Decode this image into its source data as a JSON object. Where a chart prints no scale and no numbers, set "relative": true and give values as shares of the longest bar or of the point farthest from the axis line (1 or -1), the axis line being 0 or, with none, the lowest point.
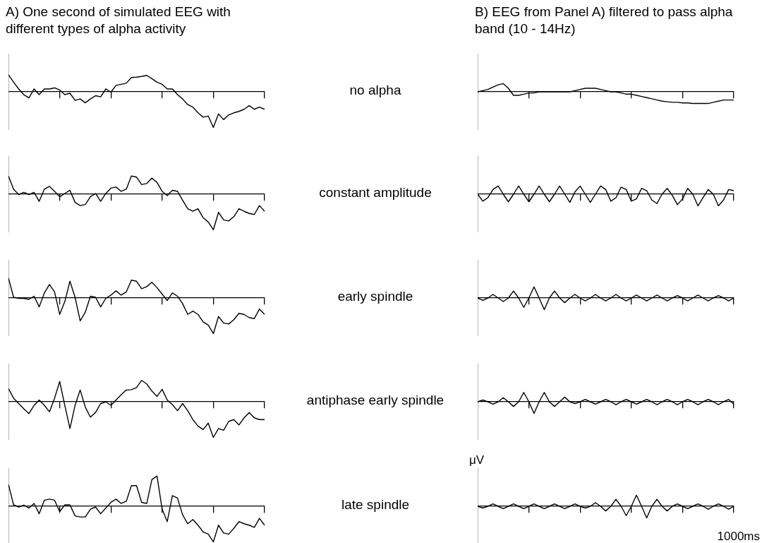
{
  "chart_data": [
    {
      "type": "line",
      "title": "A) One second of simulated EEG with different types of alpha activity",
      "annotations": [
        "no alpha"
      ],
      "relative": true,
      "tick_labels": false,
      "marker": "none",
      "color": "#000000",
      "categories": [
        null,
        null,
        null,
        null,
        null,
        null,
        null,
        null,
        null,
        null,
        null,
        null,
        null,
        null,
        null,
        null,
        null,
        null,
        null,
        null,
        null,
        null,
        null,
        null,
        null,
        null,
        null,
        null,
        null,
        null,
        null,
        null,
        null,
        null,
        null,
        null,
        null,
        null,
        null,
        null,
        null,
        null,
        null,
        null,
        null,
        null,
        null,
        null,
        null,
        null,
        null
      ],
      "values": [
        0.48,
        0.27,
        0.08,
        -0.08,
        -0.17,
        0.08,
        -0.08,
        0.08,
        0.08,
        0.11,
        0.05,
        -0.08,
        -0.04,
        -0.24,
        -0.2,
        -0.31,
        -0.2,
        -0.11,
        -0.14,
        0.08,
        -0.01,
        0.18,
        0.21,
        0.24,
        0.4,
        0.41,
        0.43,
        0.46,
        0.37,
        0.27,
        0.21,
        0.08,
        0.08,
        -0.08,
        -0.2,
        -0.36,
        -0.43,
        -0.59,
        -0.71,
        -0.68,
        -1,
        -0.62,
        -0.78,
        -0.65,
        -0.59,
        -0.55,
        -0.49,
        -0.39,
        -0.49,
        -0.43,
        -0.49
      ]
    },
    {
      "type": "line",
      "title": "B) EEG from Panel A) filtered to pass alpha band (10 - 14Hz)",
      "relative": true,
      "tick_labels": false,
      "marker": "none",
      "color": "#000000",
      "categories": [
        null,
        null,
        null,
        null,
        null,
        null,
        null,
        null,
        null,
        null,
        null,
        null,
        null,
        null,
        null,
        null,
        null,
        null,
        null,
        null,
        null,
        null,
        null,
        null,
        null,
        null,
        null,
        null,
        null,
        null,
        null,
        null,
        null,
        null,
        null,
        null,
        null,
        null,
        null,
        null,
        null,
        null,
        null,
        null,
        null,
        null,
        null,
        null,
        null,
        null,
        null
      ],
      "values": [
        0,
        0.1,
        0.2,
        0.4,
        0.6,
        0.7,
        0.3,
        -0.3,
        -0.3,
        -0.2,
        -0.1,
        -0.1,
        0,
        0,
        0,
        0,
        0,
        0,
        0,
        0.1,
        0.2,
        0.3,
        0.3,
        0.3,
        0.2,
        0.1,
        0,
        0,
        -0.1,
        -0.2,
        -0.2,
        -0.3,
        -0.4,
        -0.5,
        -0.6,
        -0.7,
        -0.8,
        -0.85,
        -0.9,
        -0.9,
        -0.95,
        -0.95,
        -1,
        -1,
        -1,
        -1,
        -0.9,
        -0.8,
        -0.7,
        -0.7,
        -0.7
      ]
    },
    {
      "type": "line",
      "annotations": [
        "constant amplitude"
      ],
      "relative": true,
      "tick_labels": false,
      "marker": "none",
      "color": "#000000",
      "categories": [
        null,
        null,
        null,
        null,
        null,
        null,
        null,
        null,
        null,
        null,
        null,
        null,
        null,
        null,
        null,
        null,
        null,
        null,
        null,
        null,
        null,
        null,
        null,
        null,
        null,
        null,
        null,
        null,
        null,
        null,
        null,
        null,
        null,
        null,
        null,
        null,
        null,
        null,
        null,
        null,
        null,
        null,
        null,
        null,
        null,
        null,
        null,
        null,
        null,
        null,
        null
      ],
      "values": [
        0.51,
        0.14,
        -0.01,
        0.05,
        -0.01,
        0.05,
        -0.2,
        0.14,
        0.22,
        0.08,
        -0.07,
        0.02,
        0.11,
        -0.23,
        -0.32,
        -0.29,
        -0.07,
        0.02,
        -0.2,
        0.02,
        0.17,
        0.2,
        0.08,
        0.14,
        0.51,
        0.48,
        0.27,
        0.3,
        0.45,
        0.33,
        0.08,
        -0.04,
        0.11,
        0.08,
        -0.17,
        -0.41,
        -0.48,
        -0.41,
        -0.66,
        -0.78,
        -1,
        -0.51,
        -0.72,
        -0.75,
        -0.63,
        -0.41,
        -0.48,
        -0.54,
        -0.57,
        -0.32,
        -0.48
      ]
    },
    {
      "type": "line",
      "relative": true,
      "tick_labels": false,
      "marker": "none",
      "color": "#000000",
      "categories": [
        null,
        null,
        null,
        null,
        null,
        null,
        null,
        null,
        null,
        null,
        null,
        null,
        null,
        null,
        null,
        null,
        null,
        null,
        null,
        null,
        null,
        null,
        null,
        null,
        null,
        null,
        null,
        null,
        null,
        null,
        null,
        null,
        null,
        null,
        null,
        null,
        null,
        null,
        null,
        null,
        null,
        null,
        null,
        null,
        null,
        null,
        null,
        null,
        null,
        null,
        null
      ],
      "values": [
        0,
        -0.6,
        -0.3,
        0.4,
        0.7,
        0,
        -0.65,
        0,
        0.7,
        0,
        -0.65,
        0,
        0.7,
        0,
        -0.65,
        0,
        0.7,
        0,
        -0.7,
        0.2,
        0.7,
        0,
        -0.7,
        0,
        0.7,
        0.4,
        -0.6,
        -0.3,
        0.6,
        0.4,
        -0.6,
        -0.4,
        0.5,
        0.3,
        -0.5,
        -0.8,
        0,
        0.5,
        -0.1,
        -0.9,
        -0.4,
        0.5,
        0,
        -1,
        -0.3,
        0.4,
        0,
        -1,
        -0.5,
        0.4,
        0.3
      ]
    },
    {
      "type": "line",
      "annotations": [
        "early spindle"
      ],
      "relative": true,
      "tick_labels": false,
      "marker": "none",
      "color": "#000000",
      "categories": [
        null,
        null,
        null,
        null,
        null,
        null,
        null,
        null,
        null,
        null,
        null,
        null,
        null,
        null,
        null,
        null,
        null,
        null,
        null,
        null,
        null,
        null,
        null,
        null,
        null,
        null,
        null,
        null,
        null,
        null,
        null,
        null,
        null,
        null,
        null,
        null,
        null,
        null,
        null,
        null,
        null,
        null,
        null,
        null,
        null,
        null,
        null,
        null,
        null,
        null,
        null
      ],
      "values": [
        0.56,
        0.02,
        -0.01,
        -0.01,
        -0.04,
        0.05,
        -0.25,
        0.14,
        0.38,
        0.17,
        -0.46,
        -0.1,
        0.47,
        0.02,
        -0.64,
        -0.4,
        0.05,
        0.02,
        -0.25,
        -0.01,
        0.08,
        0.2,
        0.08,
        0.17,
        0.5,
        0.47,
        0.26,
        0.32,
        0.44,
        0.29,
        0.11,
        -0.07,
        0.14,
        0.05,
        -0.16,
        -0.46,
        -0.37,
        -0.46,
        -0.67,
        -0.76,
        -1,
        -0.52,
        -0.7,
        -0.73,
        -0.61,
        -0.43,
        -0.46,
        -0.55,
        -0.58,
        -0.31,
        -0.46
      ]
    },
    {
      "type": "line",
      "relative": true,
      "tick_labels": false,
      "marker": "none",
      "color": "#000000",
      "categories": [
        null,
        null,
        null,
        null,
        null,
        null,
        null,
        null,
        null,
        null,
        null,
        null,
        null,
        null,
        null,
        null,
        null,
        null,
        null,
        null,
        null,
        null,
        null,
        null,
        null,
        null,
        null,
        null,
        null,
        null,
        null,
        null,
        null,
        null,
        null,
        null,
        null,
        null,
        null,
        null,
        null,
        null,
        null,
        null,
        null,
        null,
        null,
        null,
        null,
        null,
        null
      ],
      "values": [
        0,
        -0.2,
        0,
        0.3,
        0,
        -0.3,
        0,
        0.6,
        0,
        -0.8,
        0,
        0.95,
        0,
        -1,
        0,
        0.6,
        0,
        -0.4,
        0,
        0.3,
        0,
        -0.25,
        0,
        0.3,
        0,
        -0.25,
        0,
        0.3,
        0,
        -0.25,
        0,
        0.25,
        0,
        -0.25,
        0,
        0.25,
        0,
        -0.25,
        0,
        0.2,
        0,
        -0.25,
        0,
        0.25,
        0,
        -0.25,
        0,
        0.2,
        0,
        -0.25,
        0
      ]
    },
    {
      "type": "line",
      "annotations": [
        "antiphase early spindle"
      ],
      "relative": true,
      "tick_labels": false,
      "marker": "none",
      "color": "#000000",
      "categories": [
        null,
        null,
        null,
        null,
        null,
        null,
        null,
        null,
        null,
        null,
        null,
        null,
        null,
        null,
        null,
        null,
        null,
        null,
        null,
        null,
        null,
        null,
        null,
        null,
        null,
        null,
        null,
        null,
        null,
        null,
        null,
        null,
        null,
        null,
        null,
        null,
        null,
        null,
        null,
        null,
        null,
        null,
        null,
        null,
        null,
        null,
        null,
        null,
        null,
        null,
        null
      ],
      "values": [
        0.37,
        0.1,
        -0.05,
        -0.2,
        -0.33,
        -0.1,
        0.05,
        -0.1,
        -0.28,
        0.1,
        0.57,
        -0.1,
        -0.75,
        -0.1,
        0.33,
        -0.15,
        -0.43,
        -0.3,
        -0.05,
        0,
        -0.1,
        0.05,
        0.2,
        0.33,
        0.34,
        0.4,
        0.6,
        0.5,
        0.3,
        0.15,
        0.35,
        0.05,
        -0.08,
        -0.25,
        -0.05,
        -0.25,
        -0.5,
        -0.68,
        -0.78,
        -0.6,
        -1,
        -0.75,
        -0.8,
        -0.55,
        -0.5,
        -0.65,
        -0.45,
        -0.3,
        -0.45,
        -0.5,
        -0.5
      ]
    },
    {
      "type": "line",
      "relative": true,
      "tick_labels": false,
      "marker": "none",
      "color": "#000000",
      "categories": [
        null,
        null,
        null,
        null,
        null,
        null,
        null,
        null,
        null,
        null,
        null,
        null,
        null,
        null,
        null,
        null,
        null,
        null,
        null,
        null,
        null,
        null,
        null,
        null,
        null,
        null,
        null,
        null,
        null,
        null,
        null,
        null,
        null,
        null,
        null,
        null,
        null,
        null,
        null,
        null,
        null,
        null,
        null,
        null,
        null,
        null,
        null,
        null,
        null,
        null,
        null
      ],
      "values": [
        0,
        0.15,
        0,
        -0.2,
        0,
        0.35,
        0,
        -0.4,
        0,
        0.8,
        0,
        -1,
        0,
        0.8,
        0,
        -0.4,
        0,
        0.4,
        0,
        -0.15,
        0,
        0.2,
        0,
        -0.2,
        0,
        0.2,
        0,
        -0.25,
        0,
        0.2,
        0,
        -0.2,
        0,
        0.2,
        0,
        -0.25,
        0,
        0.2,
        0,
        -0.25,
        0,
        0.2,
        0,
        -0.25,
        0,
        0.2,
        0,
        -0.25,
        0,
        0.2,
        -0.2
      ]
    },
    {
      "type": "line",
      "annotations": [
        "late spindle"
      ],
      "relative": true,
      "tick_labels": false,
      "marker": "none",
      "color": "#000000",
      "categories": [
        null,
        null,
        null,
        null,
        null,
        null,
        null,
        null,
        null,
        null,
        null,
        null,
        null,
        null,
        null,
        null,
        null,
        null,
        null,
        null,
        null,
        null,
        null,
        null,
        null,
        null,
        null,
        null,
        null,
        null,
        null,
        null,
        null,
        null,
        null,
        null,
        null,
        null,
        null,
        null,
        null,
        null,
        null,
        null,
        null,
        null,
        null,
        null,
        null,
        null,
        null
      ],
      "values": [
        0.61,
        0.04,
        -0.02,
        0.03,
        -0.05,
        0.08,
        -0.21,
        0.17,
        0.2,
        0.17,
        -0.15,
        0.04,
        0.04,
        -0.27,
        -0.3,
        -0.3,
        -0.08,
        -0.02,
        -0.21,
        -0.05,
        0.11,
        0.2,
        0.08,
        0.14,
        0.58,
        0.58,
        0.11,
        0.08,
        0.75,
        0.85,
        -0.08,
        -0.43,
        0.3,
        0.23,
        -0.24,
        -0.49,
        -0.37,
        -0.53,
        -0.72,
        -0.78,
        -1,
        -0.53,
        -0.75,
        -0.78,
        -0.62,
        -0.43,
        -0.49,
        -0.53,
        -0.59,
        -0.34,
        -0.53
      ]
    },
    {
      "type": "line",
      "ylabel": "μV",
      "xlabel": "1000ms",
      "relative": true,
      "tick_labels": false,
      "marker": "none",
      "color": "#000000",
      "categories": [
        null,
        null,
        null,
        null,
        null,
        null,
        null,
        null,
        null,
        null,
        null,
        null,
        null,
        null,
        null,
        null,
        null,
        null,
        null,
        null,
        null,
        null,
        null,
        null,
        null,
        null,
        null,
        null,
        null,
        null,
        null,
        null,
        null,
        null,
        null,
        null,
        null,
        null,
        null,
        null,
        null,
        null,
        null,
        null,
        null,
        null,
        null,
        null,
        null,
        null,
        null
      ],
      "values": [
        0,
        -0.15,
        0,
        0.2,
        0,
        -0.2,
        0,
        0.2,
        0,
        -0.2,
        0,
        0.2,
        0,
        -0.2,
        0,
        0.2,
        0,
        -0.2,
        0,
        0.2,
        0,
        -0.15,
        0,
        0.3,
        0,
        -0.4,
        0,
        0.6,
        0,
        -0.8,
        0,
        0.95,
        0,
        -1,
        0,
        0.6,
        0,
        -0.4,
        0,
        0.2,
        0,
        -0.2,
        0,
        0.2,
        0,
        -0.25,
        0,
        0.2,
        0,
        -0.25,
        0
      ]
    }
  ]
}
